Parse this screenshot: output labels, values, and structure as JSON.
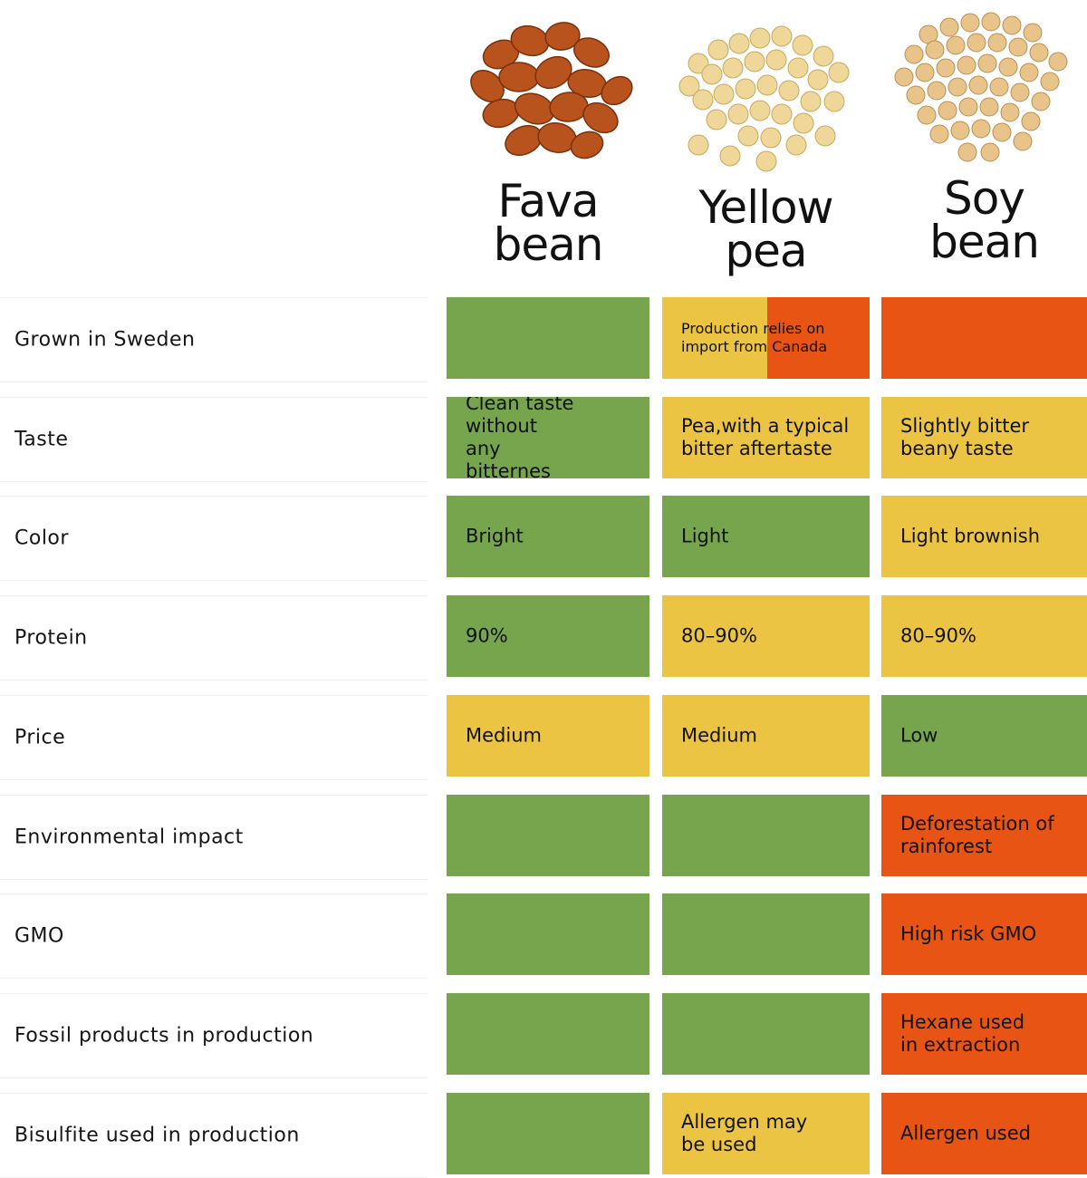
{
  "columns": [
    {
      "name": "Fava\nbean"
    },
    {
      "name": "Yellow\npea"
    },
    {
      "name": "Soy\nbean"
    }
  ],
  "colors": {
    "green": "#76a54e",
    "yellow": "#ecc444",
    "orange": "#e85413"
  },
  "rows": [
    {
      "label": "Grown in Sweden",
      "cells": [
        {
          "text": "",
          "status": "green"
        },
        {
          "text": "Production relies on\nimport from Canada",
          "status": "yellow-orange"
        },
        {
          "text": "",
          "status": "orange"
        }
      ]
    },
    {
      "label": "Taste",
      "cells": [
        {
          "text": "Clean taste without\nany\nbitternes",
          "status": "green"
        },
        {
          "text": "Pea,with a typical\nbitter aftertaste",
          "status": "yellow"
        },
        {
          "text": "Slightly bitter\nbeany taste",
          "status": "yellow"
        }
      ]
    },
    {
      "label": "Color",
      "cells": [
        {
          "text": "Bright",
          "status": "green"
        },
        {
          "text": "Light",
          "status": "green"
        },
        {
          "text": "Light brownish",
          "status": "yellow"
        }
      ]
    },
    {
      "label": "Protein",
      "cells": [
        {
          "text": "90%",
          "status": "green"
        },
        {
          "text": "80–90%",
          "status": "yellow"
        },
        {
          "text": "80–90%",
          "status": "yellow"
        }
      ]
    },
    {
      "label": "Price",
      "cells": [
        {
          "text": "Medium",
          "status": "yellow"
        },
        {
          "text": "Medium",
          "status": "yellow"
        },
        {
          "text": "Low",
          "status": "green"
        }
      ]
    },
    {
      "label": "Environmental impact",
      "cells": [
        {
          "text": "",
          "status": "green"
        },
        {
          "text": "",
          "status": "green"
        },
        {
          "text": "Deforestation of\nrainforest",
          "status": "orange"
        }
      ]
    },
    {
      "label": "GMO",
      "cells": [
        {
          "text": "",
          "status": "green"
        },
        {
          "text": "",
          "status": "green"
        },
        {
          "text": "High risk GMO",
          "status": "orange"
        }
      ]
    },
    {
      "label": "Fossil products in production",
      "cells": [
        {
          "text": "",
          "status": "green"
        },
        {
          "text": "",
          "status": "green"
        },
        {
          "text": "Hexane used\nin extraction",
          "status": "orange"
        }
      ]
    },
    {
      "label": "Bisulfite used in production",
      "cells": [
        {
          "text": "",
          "status": "green"
        },
        {
          "text": "Allergen may\nbe used",
          "status": "yellow"
        },
        {
          "text": "Allergen used",
          "status": "orange"
        }
      ]
    }
  ]
}
